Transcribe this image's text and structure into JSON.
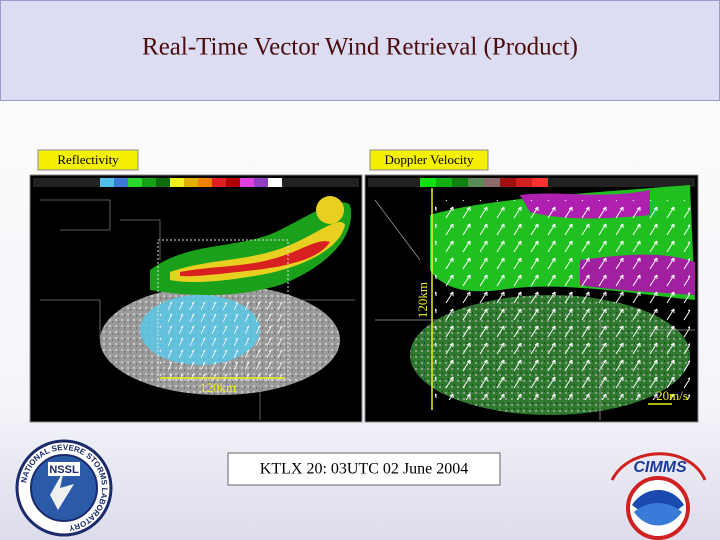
{
  "title": "Real-Time Vector Wind Retrieval (Product)",
  "panels": [
    {
      "label": "Reflectivity",
      "annotations": [
        "120km"
      ]
    },
    {
      "label": "Doppler Velocity",
      "annotations": [
        "120km",
        "20m/s"
      ]
    }
  ],
  "caption": "KTLX 20: 03UTC 02 June 2004",
  "logos": [
    {
      "text": "NSSL",
      "ring": "NATIONAL SEVERE STORMS LABORATORY"
    },
    {
      "text": "CIMMS"
    }
  ]
}
